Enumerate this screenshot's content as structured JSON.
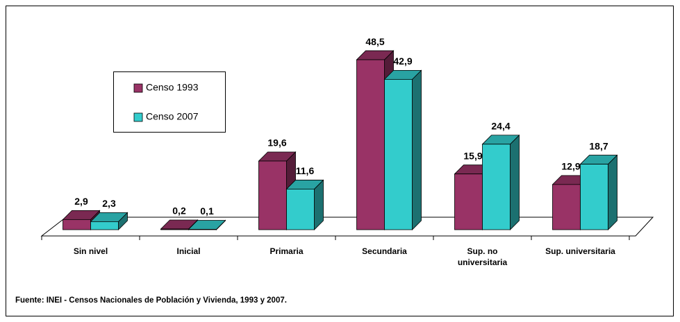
{
  "chart_data": {
    "type": "bar3d",
    "categories": [
      "Sin nivel",
      "Inicial",
      "Primaria",
      "Secundaria",
      "Sup. no universitaria",
      "Sup. universitaria"
    ],
    "series": [
      {
        "name": "Censo 1993",
        "color": "#993366",
        "values": [
          2.9,
          0.2,
          19.6,
          48.5,
          15.9,
          12.9
        ],
        "value_labels": [
          "2,9",
          "0,2",
          "19,6",
          "48,5",
          "15,9",
          "12,9"
        ]
      },
      {
        "name": "Censo 2007",
        "color": "#33cccc",
        "values": [
          2.3,
          0.1,
          11.6,
          42.9,
          24.4,
          18.7
        ],
        "value_labels": [
          "2,3",
          "0,1",
          "11,6",
          "42,9",
          "24,4",
          "18,7"
        ]
      }
    ],
    "note": "Fuente: INEI - Censos Nacionales de Población y Vivienda, 1993 y 2007."
  }
}
